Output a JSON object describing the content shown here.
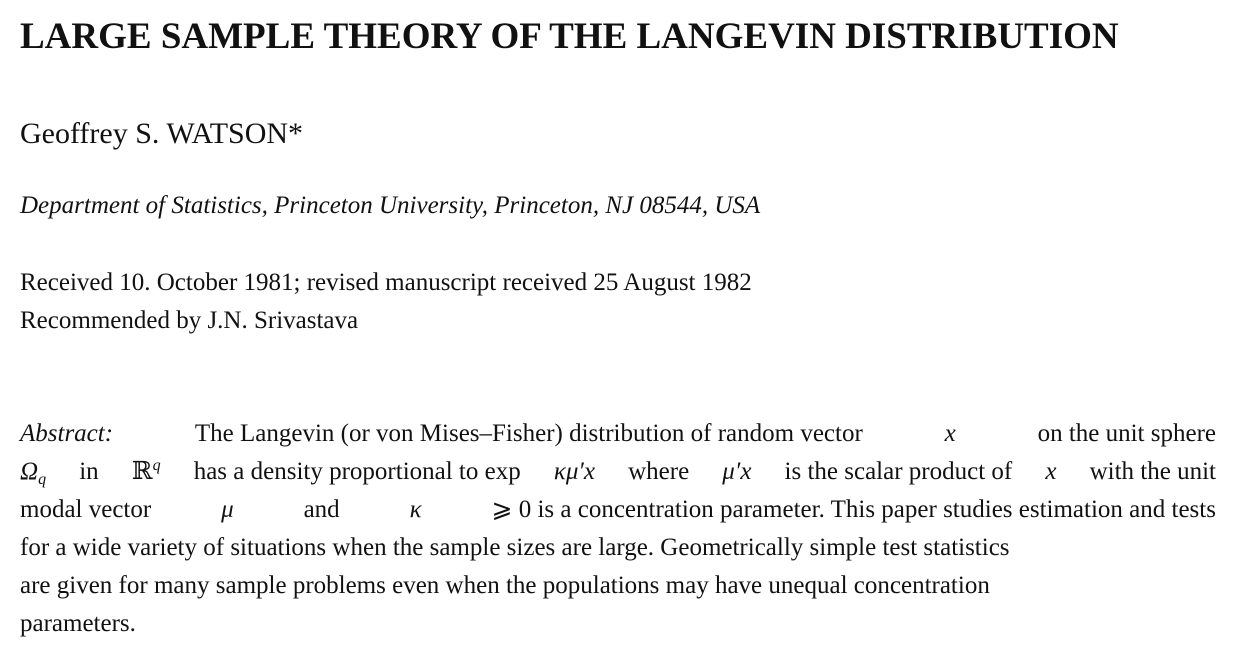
{
  "paper": {
    "title": "LARGE SAMPLE THEORY OF THE LANGEVIN DISTRIBUTION",
    "author": "Geoffrey S. WATSON*",
    "affiliation": "Department of Statistics, Princeton University, Princeton, NJ 08544, USA",
    "received": "Received 10. October 1981; revised manuscript received 25 August 1982",
    "recommended": "Recommended by J.N. Srivastava",
    "abstract": {
      "label": "Abstract:",
      "line1_rest": "The Langevin (or von Mises–Fisher) distribution of random vector",
      "line1_x": "x",
      "line1_end": "on the unit sphere",
      "line2_omega": "Ω",
      "line2_q": "q",
      "line2_in": "in",
      "line2_R": "ℝ",
      "line2_rq": "q",
      "line2_a": "has a density proportional to exp",
      "line2_kmux": "κμ′x",
      "line2_b": "where",
      "line2_mux": "μ′x",
      "line2_c": "is the scalar product of",
      "line2_x": "x",
      "line2_d": "with the unit",
      "line3_a": "modal vector",
      "line3_mu": "μ",
      "line3_b": "and",
      "line3_kappa": "κ",
      "line3_c": "⩾ 0 is a concentration parameter. This paper studies estimation and tests",
      "line4": "for a wide variety of situations when the sample sizes are large. Geometrically simple test statistics",
      "line5": "are given for many sample problems even when the populations may have unequal concentration",
      "line6": "parameters."
    }
  }
}
